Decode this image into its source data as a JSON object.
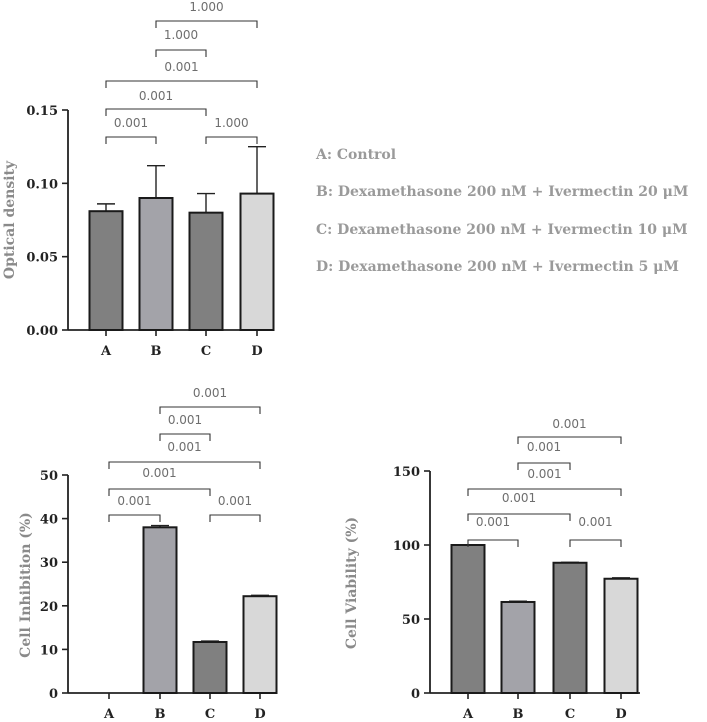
{
  "legend": {
    "items": [
      "A: Control",
      "B: Dexamethasone 200 nM + Ivermectin 20 μM",
      "C: Dexamethasone 200 nM + Ivermectin 10 μM",
      "D: Dexamethasone 200 nM + Ivermectin 5 μM"
    ]
  },
  "colors": {
    "A": "#808080",
    "B": "#a3a3a9",
    "C": "#808080",
    "D": "#d8d8d8"
  },
  "chart_data": [
    {
      "type": "bar",
      "ylabel": "Optical density",
      "categories": [
        "A",
        "B",
        "C",
        "D"
      ],
      "values": [
        0.081,
        0.09,
        0.08,
        0.093
      ],
      "errors": [
        0.005,
        0.022,
        0.013,
        0.032
      ],
      "ylim": [
        0,
        0.15
      ],
      "yticks": [
        "0.00",
        "0.05",
        "0.10",
        "0.15"
      ],
      "yticks_values": [
        0,
        0.05,
        0.1,
        0.15
      ],
      "comparisons": [
        {
          "a": 0,
          "b": 1,
          "p": "0.001"
        },
        {
          "a": 2,
          "b": 3,
          "p": "1.000"
        },
        {
          "a": 0,
          "b": 2,
          "p": "0.001"
        },
        {
          "a": 0,
          "b": 3,
          "p": "0.001"
        },
        {
          "a": 1,
          "b": 2,
          "p": "1.000"
        },
        {
          "a": 1,
          "b": 3,
          "p": "1.000"
        }
      ]
    },
    {
      "type": "bar",
      "ylabel": "Cell Inhibition (%)",
      "categories": [
        "A",
        "B",
        "C",
        "D"
      ],
      "values": [
        0,
        38,
        11.7,
        22.2
      ],
      "errors": [
        0,
        0.4,
        0.2,
        0.2
      ],
      "ylim": [
        0,
        50
      ],
      "yticks": [
        "0",
        "10",
        "20",
        "30",
        "40",
        "50"
      ],
      "yticks_values": [
        0,
        10,
        20,
        30,
        40,
        50
      ],
      "comparisons": [
        {
          "a": 0,
          "b": 1,
          "p": "0.001"
        },
        {
          "a": 2,
          "b": 3,
          "p": "0.001"
        },
        {
          "a": 0,
          "b": 2,
          "p": "0.001"
        },
        {
          "a": 0,
          "b": 3,
          "p": "0.001"
        },
        {
          "a": 1,
          "b": 2,
          "p": "0.001"
        },
        {
          "a": 1,
          "b": 3,
          "p": "0.001"
        }
      ]
    },
    {
      "type": "bar",
      "ylabel": "Cell Viability (%)",
      "categories": [
        "A",
        "B",
        "C",
        "D"
      ],
      "values": [
        100,
        61.5,
        88,
        77.2
      ],
      "errors": [
        0,
        0.5,
        0.3,
        0.6
      ],
      "ylim": [
        0,
        150
      ],
      "yticks": [
        "0",
        "50",
        "100",
        "150"
      ],
      "yticks_values": [
        0,
        50,
        100,
        150
      ],
      "comparisons": [
        {
          "a": 0,
          "b": 1,
          "p": "0.001"
        },
        {
          "a": 2,
          "b": 3,
          "p": "0.001"
        },
        {
          "a": 0,
          "b": 2,
          "p": "0.001"
        },
        {
          "a": 0,
          "b": 3,
          "p": "0.001"
        },
        {
          "a": 1,
          "b": 2,
          "p": "0.001"
        },
        {
          "a": 1,
          "b": 3,
          "p": "0.001"
        }
      ]
    }
  ]
}
